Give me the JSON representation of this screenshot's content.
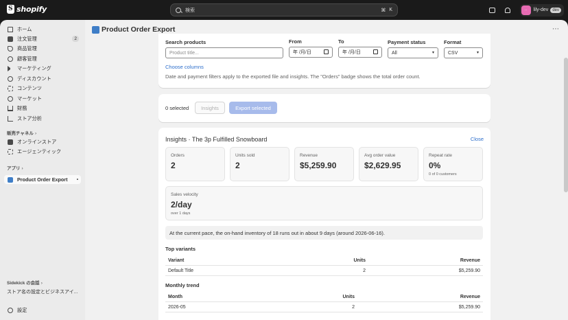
{
  "topbar": {
    "logo_text": "shopify",
    "search_placeholder": "検索",
    "shortcut_cmd": "⌘",
    "shortcut_key": "K",
    "user_initials": "··",
    "user_name": "lily-dev",
    "user_badge": "dev"
  },
  "sidebar": {
    "items": [
      {
        "label": "ホーム",
        "icon": "home-icon"
      },
      {
        "label": "注文管理",
        "icon": "orders-icon",
        "badge": "2"
      },
      {
        "label": "商品管理",
        "icon": "tag-icon"
      },
      {
        "label": "顧客管理",
        "icon": "person-icon"
      },
      {
        "label": "マーケティング",
        "icon": "megaphone-icon"
      },
      {
        "label": "ディスカウント",
        "icon": "discount-icon"
      },
      {
        "label": "コンテンツ",
        "icon": "content-icon"
      },
      {
        "label": "マーケット",
        "icon": "globe-icon"
      },
      {
        "label": "財務",
        "icon": "bank-icon"
      },
      {
        "label": "ストア分析",
        "icon": "chart-icon"
      }
    ],
    "sales_channels_label": "販売チャネル",
    "channels": [
      {
        "label": "オンラインストア",
        "icon": "store-icon"
      },
      {
        "label": "エージェンティック",
        "icon": "agentic-icon"
      }
    ],
    "apps_label": "アプリ",
    "apps": [
      {
        "label": "Product Order Export",
        "icon": "app-icon"
      }
    ],
    "sidekick_label": "Sidekick の会話",
    "sidekick_item": "ストア名の設定とビジネスアイ...",
    "settings_label": "設定"
  },
  "page": {
    "title": "Product Order Export"
  },
  "filters": {
    "search_label": "Search products",
    "search_placeholder": "Product title...",
    "from_label": "From",
    "from_value": "年 /月/日",
    "to_label": "To",
    "to_value": "年 /月/日",
    "payment_label": "Payment status",
    "payment_value": "All",
    "format_label": "Format",
    "format_value": "CSV",
    "choose_columns": "Choose columns",
    "help_text": "Date and payment filters apply to the exported file and insights. The \"Orders\" badge shows the total order count."
  },
  "actions": {
    "selected_text": "0 selected",
    "insights_label": "Insights",
    "export_label": "Export selected"
  },
  "insights": {
    "title": "Insights · The 3p Fulfilled Snowboard",
    "close_label": "Close",
    "stats": [
      {
        "label": "Orders",
        "value": "2",
        "sub": ""
      },
      {
        "label": "Units sold",
        "value": "2",
        "sub": ""
      },
      {
        "label": "Revenue",
        "value": "$5,259.90",
        "sub": ""
      },
      {
        "label": "Avg order value",
        "value": "$2,629.95",
        "sub": ""
      },
      {
        "label": "Repeat rate",
        "value": "0%",
        "sub": "0 of 0 customers"
      }
    ],
    "velocity": {
      "label": "Sales velocity",
      "value": "2/day",
      "sub": "over 1 days"
    },
    "forecast": "At the current pace, the on-hand inventory of 18 runs out in about 9 days (around 2026-06-16).",
    "top_variants": {
      "title": "Top variants",
      "headers": [
        "Variant",
        "Units",
        "Revenue"
      ],
      "rows": [
        [
          "Default Title",
          "2",
          "$5,259.90"
        ]
      ]
    },
    "monthly_trend": {
      "title": "Monthly trend",
      "headers": [
        "Month",
        "Units",
        "Revenue"
      ],
      "rows": [
        [
          "2026-05",
          "2",
          "$5,259.90"
        ]
      ]
    }
  }
}
